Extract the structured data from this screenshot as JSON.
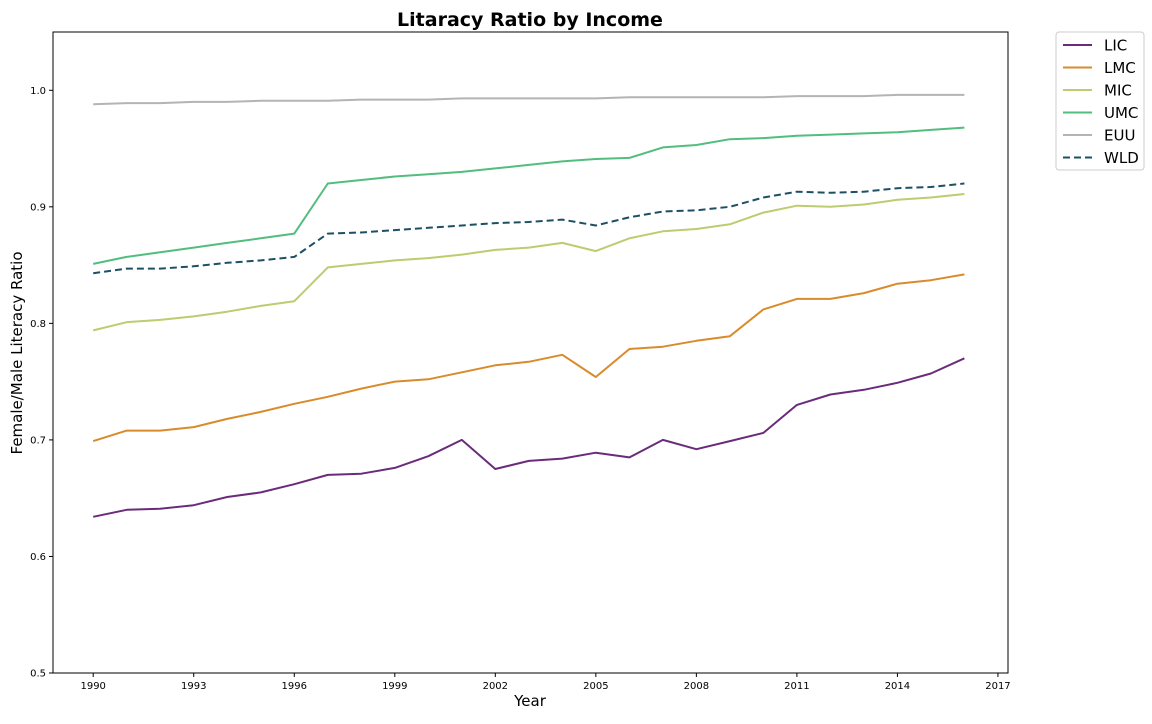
{
  "chart_data": {
    "type": "line",
    "title": "Litaracy Ratio by Income",
    "xlabel": "Year",
    "ylabel": "Female/Male Literacy Ratio",
    "xlim": [
      1988.8,
      2017.3
    ],
    "ylim": [
      0.5,
      1.05
    ],
    "x_ticks": [
      1990,
      1993,
      1996,
      1999,
      2002,
      2005,
      2008,
      2011,
      2014,
      2017
    ],
    "y_ticks": [
      0.5,
      0.6,
      0.7,
      0.8,
      0.9,
      1.0
    ],
    "y_tick_labels": [
      "0.5",
      "0.6",
      "0.7",
      "0.8",
      "0.9",
      "1.0"
    ],
    "grid": false,
    "legend_position": "outside-top-right",
    "x": [
      1990,
      1991,
      1992,
      1993,
      1994,
      1995,
      1996,
      1997,
      1998,
      1999,
      2000,
      2001,
      2002,
      2003,
      2004,
      2005,
      2006,
      2007,
      2008,
      2009,
      2010,
      2011,
      2012,
      2013,
      2014,
      2015,
      2016
    ],
    "series": [
      {
        "name": "LIC",
        "color": "#6a2c7a",
        "dashed": false,
        "values": [
          0.634,
          0.64,
          0.641,
          0.644,
          0.651,
          0.655,
          0.662,
          0.67,
          0.671,
          0.676,
          0.686,
          0.7,
          0.675,
          0.682,
          0.684,
          0.689,
          0.685,
          0.7,
          0.692,
          0.699,
          0.706,
          0.73,
          0.739,
          0.743,
          0.749,
          0.757,
          0.77
        ]
      },
      {
        "name": "LMC",
        "color": "#d98b2b",
        "dashed": false,
        "values": [
          0.699,
          0.708,
          0.708,
          0.711,
          0.718,
          0.724,
          0.731,
          0.737,
          0.744,
          0.75,
          0.752,
          0.758,
          0.764,
          0.767,
          0.773,
          0.754,
          0.778,
          0.78,
          0.785,
          0.789,
          0.812,
          0.821,
          0.821,
          0.826,
          0.834,
          0.837,
          0.842
        ]
      },
      {
        "name": "MIC",
        "color": "#bccc6e",
        "dashed": false,
        "values": [
          0.794,
          0.801,
          0.803,
          0.806,
          0.81,
          0.815,
          0.819,
          0.848,
          0.851,
          0.854,
          0.856,
          0.859,
          0.863,
          0.865,
          0.869,
          0.862,
          0.873,
          0.879,
          0.881,
          0.885,
          0.895,
          0.901,
          0.9,
          0.902,
          0.906,
          0.908,
          0.911
        ]
      },
      {
        "name": "UMC",
        "color": "#52bd7f",
        "dashed": false,
        "values": [
          0.851,
          0.857,
          0.861,
          0.865,
          0.869,
          0.873,
          0.877,
          0.92,
          0.923,
          0.926,
          0.928,
          0.93,
          0.933,
          0.936,
          0.939,
          0.941,
          0.942,
          0.951,
          0.953,
          0.958,
          0.959,
          0.961,
          0.962,
          0.963,
          0.964,
          0.966,
          0.968
        ]
      },
      {
        "name": "EUU",
        "color": "#b4b4b4",
        "dashed": false,
        "values": [
          0.988,
          0.989,
          0.989,
          0.99,
          0.99,
          0.991,
          0.991,
          0.991,
          0.992,
          0.992,
          0.992,
          0.993,
          0.993,
          0.993,
          0.993,
          0.993,
          0.994,
          0.994,
          0.994,
          0.994,
          0.994,
          0.995,
          0.995,
          0.995,
          0.996,
          0.996,
          0.996
        ]
      },
      {
        "name": "WLD",
        "color": "#1d5063",
        "dashed": true,
        "values": [
          0.843,
          0.847,
          0.847,
          0.849,
          0.852,
          0.854,
          0.857,
          0.877,
          0.878,
          0.88,
          0.882,
          0.884,
          0.886,
          0.887,
          0.889,
          0.884,
          0.891,
          0.896,
          0.897,
          0.9,
          0.908,
          0.913,
          0.912,
          0.913,
          0.916,
          0.917,
          0.92
        ]
      }
    ]
  }
}
